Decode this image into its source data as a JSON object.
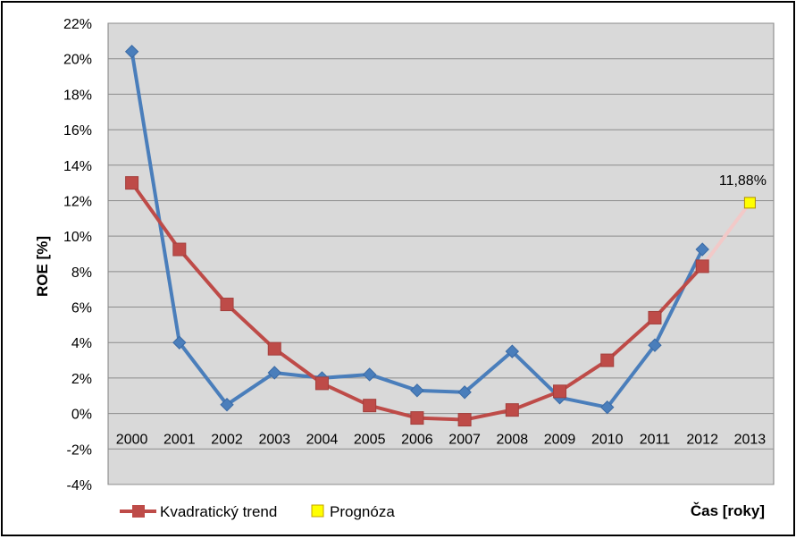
{
  "chart_data": {
    "type": "line",
    "ylabel": "ROE [%]",
    "xlabel": "Čas [roky]",
    "categories": [
      "2000",
      "2001",
      "2002",
      "2003",
      "2004",
      "2005",
      "2006",
      "2007",
      "2008",
      "2009",
      "2010",
      "2011",
      "2012",
      "2013"
    ],
    "ylim": [
      -4,
      22
    ],
    "ytick_values": [
      -4,
      -2,
      0,
      2,
      4,
      6,
      8,
      10,
      12,
      14,
      16,
      18,
      20,
      22
    ],
    "ytick_labels": [
      "-4%",
      "-2%",
      "0%",
      "2%",
      "4%",
      "6%",
      "8%",
      "10%",
      "12%",
      "14%",
      "16%",
      "18%",
      "20%",
      "22%"
    ],
    "grid": true,
    "legend_position": "bottom-left",
    "series": [
      {
        "values": [
          20.4,
          4.0,
          0.5,
          2.3,
          2.0,
          2.2,
          1.3,
          1.2,
          3.5,
          0.9,
          0.35,
          3.85,
          9.25,
          null
        ],
        "color": "#4a7ebb",
        "marker": "diamond"
      },
      {
        "name": "Kvadratický trend",
        "values": [
          13.0,
          9.25,
          6.15,
          3.65,
          1.7,
          0.45,
          -0.25,
          -0.35,
          0.2,
          1.25,
          3.0,
          5.4,
          8.3,
          null
        ],
        "color": "#be4b48",
        "marker": "square"
      }
    ],
    "forecast": {
      "name": "Prognóza",
      "x": "2013",
      "value": 11.88,
      "label": "11,88%",
      "color": "#ffff00",
      "connector_from": "2012",
      "connector_from_value": 8.3,
      "connector_color": "#f2c9c8"
    }
  }
}
